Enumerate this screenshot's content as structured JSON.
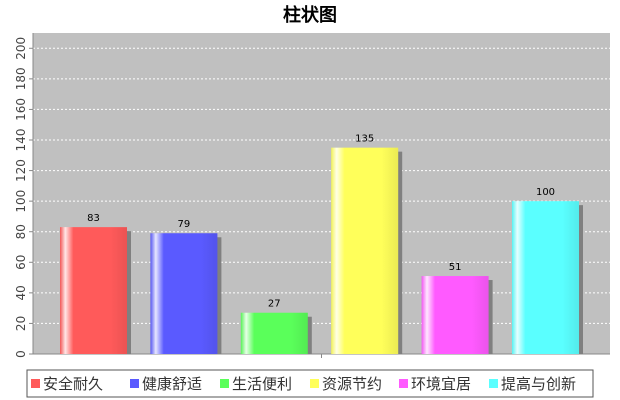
{
  "chart_data": {
    "type": "bar",
    "title": "柱状图",
    "categories": [
      "安全耐久",
      "健康舒适",
      "生活便利",
      "资源节约",
      "环境宜居",
      "提高与创新"
    ],
    "values": [
      83,
      79,
      27,
      135,
      51,
      100
    ],
    "colors": [
      "#ff5a5a",
      "#5a5aff",
      "#5aff5a",
      "#ffff5a",
      "#ff5aff",
      "#5affff"
    ],
    "ylim": [
      0,
      210
    ],
    "yticks": [
      0,
      20,
      40,
      60,
      80,
      100,
      120,
      140,
      160,
      180,
      200
    ],
    "xlabel": "",
    "ylabel": "",
    "grid": true,
    "legend_position": "bottom",
    "plot_background": "#c0c0c0"
  }
}
